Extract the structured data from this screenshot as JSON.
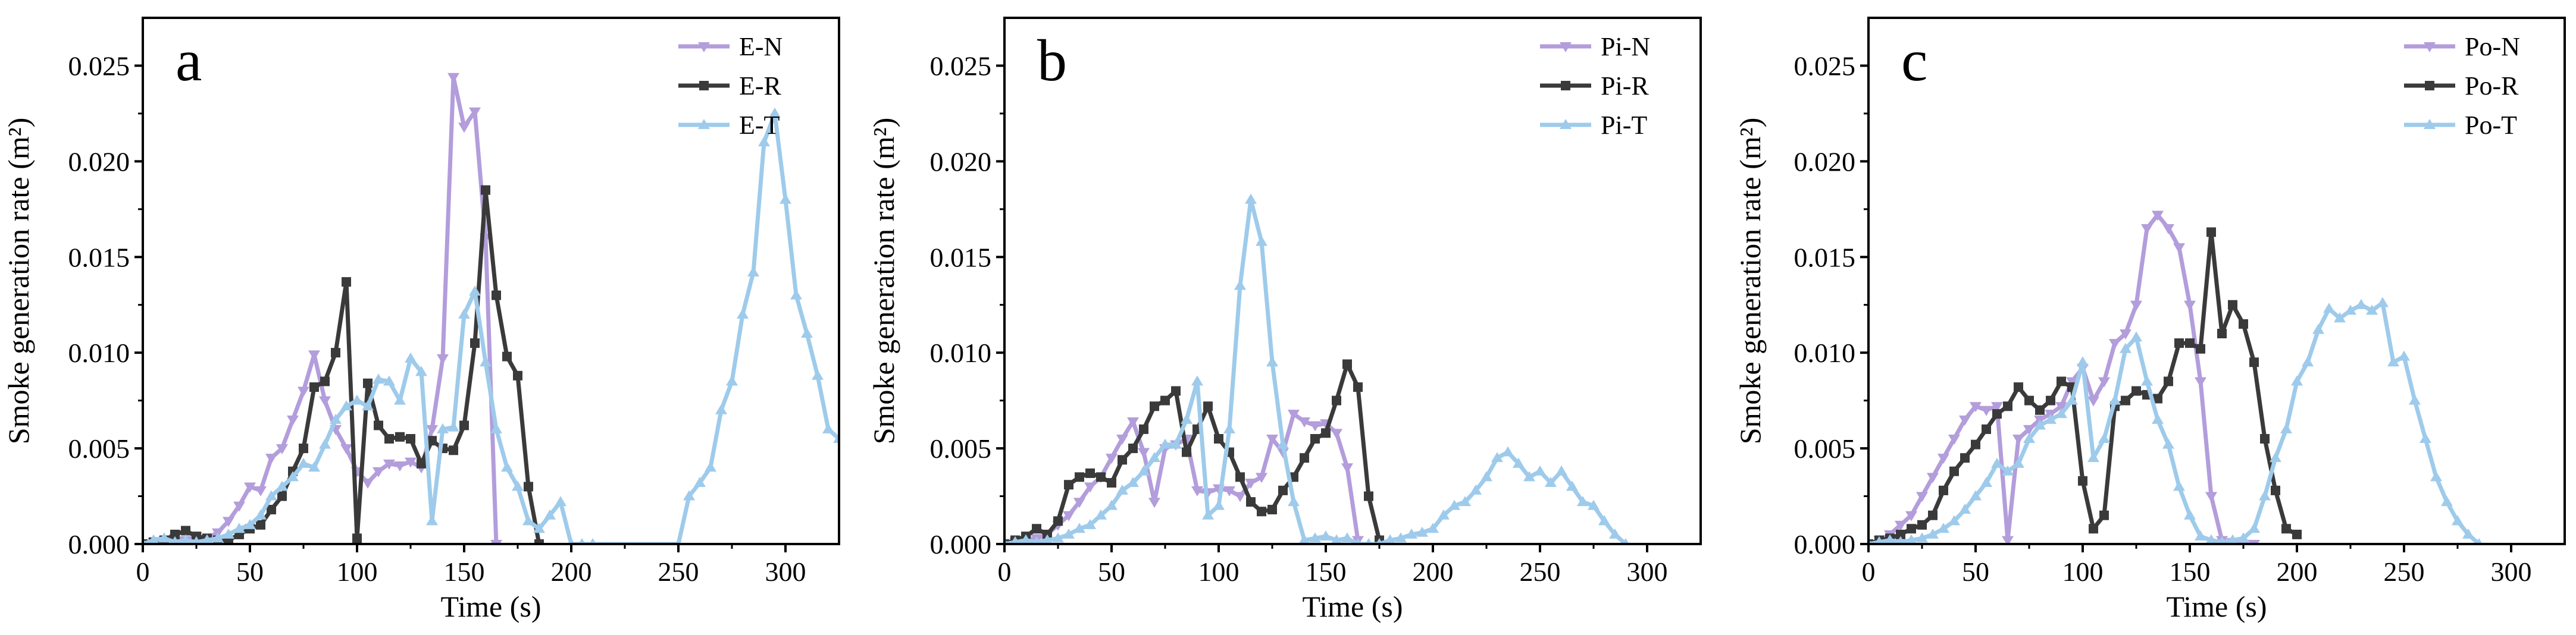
{
  "colors": {
    "N": "#b39ddb",
    "R": "#3a3a3a",
    "T": "#9ecbeb",
    "axis": "#000000"
  },
  "chart_data": [
    {
      "type": "line",
      "panel_label": "a",
      "xlabel": "Time (s)",
      "ylabel": "Smoke generation rate (m²)",
      "xlim": [
        0,
        325
      ],
      "ylim": [
        0,
        0.0275
      ],
      "xticks": [
        "0",
        "50",
        "100",
        "150",
        "200",
        "250",
        "300"
      ],
      "yticks": [
        "0.000",
        "0.005",
        "0.010",
        "0.015",
        "0.020",
        "0.025"
      ],
      "legend_position": "top-right",
      "series": [
        {
          "name": "E-N",
          "color_key": "N",
          "marker": "triangle-down",
          "x": [
            0,
            5,
            10,
            15,
            20,
            25,
            30,
            35,
            40,
            45,
            50,
            55,
            60,
            65,
            70,
            75,
            80,
            85,
            90,
            95,
            100,
            105,
            110,
            115,
            120,
            125,
            130,
            135,
            140,
            145,
            150,
            155,
            160,
            165
          ],
          "y": [
            0,
            0.0001,
            0.0002,
            0.0003,
            0.0002,
            0.0004,
            0.0003,
            0.0006,
            0.0012,
            0.002,
            0.003,
            0.0028,
            0.0045,
            0.005,
            0.0065,
            0.008,
            0.0099,
            0.0075,
            0.006,
            0.005,
            0.0038,
            0.0032,
            0.0038,
            0.0042,
            0.0041,
            0.0043,
            0.004,
            0.006,
            0.0097,
            0.0244,
            0.0218,
            0.0226,
            0.016,
            0
          ]
        },
        {
          "name": "E-R",
          "color_key": "R",
          "marker": "square",
          "x": [
            0,
            5,
            10,
            15,
            20,
            25,
            30,
            35,
            40,
            45,
            50,
            55,
            60,
            65,
            70,
            75,
            80,
            85,
            90,
            95,
            100,
            105,
            110,
            115,
            120,
            125,
            130,
            135,
            140,
            145,
            150,
            155,
            160,
            165,
            170,
            175,
            180,
            185
          ],
          "y": [
            0,
            0.0001,
            0.0002,
            0.0005,
            0.0007,
            0.0004,
            0.0003,
            0.0002,
            0.0002,
            0.0005,
            0.0008,
            0.001,
            0.0018,
            0.0025,
            0.0038,
            0.005,
            0.0082,
            0.0085,
            0.01,
            0.0137,
            0.0003,
            0.0084,
            0.0062,
            0.0055,
            0.0056,
            0.0055,
            0.0042,
            0.0054,
            0.005,
            0.0049,
            0.0062,
            0.0105,
            0.0185,
            0.013,
            0.0098,
            0.0088,
            0.003,
            0
          ]
        },
        {
          "name": "E-T",
          "color_key": "T",
          "marker": "triangle-up",
          "x": [
            0,
            5,
            10,
            15,
            20,
            25,
            30,
            35,
            40,
            45,
            50,
            55,
            60,
            65,
            70,
            75,
            80,
            85,
            90,
            95,
            100,
            105,
            110,
            115,
            120,
            125,
            130,
            135,
            140,
            145,
            150,
            155,
            160,
            165,
            170,
            175,
            180,
            185,
            190,
            195,
            200,
            205,
            210,
            250,
            255,
            260,
            265,
            270,
            275,
            280,
            285,
            290,
            295,
            300,
            305,
            310,
            315,
            320,
            325
          ],
          "y": [
            0,
            0.0002,
            0.0003,
            0.0001,
            0.0002,
            0.0001,
            0.0002,
            0.0003,
            0.0005,
            0.0008,
            0.001,
            0.0015,
            0.0025,
            0.003,
            0.0035,
            0.0042,
            0.004,
            0.0052,
            0.0065,
            0.0072,
            0.0075,
            0.0072,
            0.0086,
            0.0085,
            0.0075,
            0.0097,
            0.009,
            0.0012,
            0.006,
            0.0061,
            0.012,
            0.0132,
            0.0095,
            0.006,
            0.004,
            0.003,
            0.0012,
            0.0008,
            0.0015,
            0.0022,
            0,
            0,
            0,
            0,
            0.0025,
            0.0032,
            0.004,
            0.007,
            0.0085,
            0.012,
            0.0142,
            0.021,
            0.0225,
            0.018,
            0.013,
            0.011,
            0.0088,
            0.006,
            0.0055
          ]
        }
      ]
    },
    {
      "type": "line",
      "panel_label": "b",
      "xlabel": "Time (s)",
      "ylabel": "Smoke generation rate (m²)",
      "xlim": [
        0,
        325
      ],
      "ylim": [
        0,
        0.0275
      ],
      "xticks": [
        "0",
        "50",
        "100",
        "150",
        "200",
        "250",
        "300"
      ],
      "yticks": [
        "0.000",
        "0.005",
        "0.010",
        "0.015",
        "0.020",
        "0.025"
      ],
      "legend_position": "top-right",
      "series": [
        {
          "name": "Pi-N",
          "color_key": "N",
          "marker": "triangle-down",
          "x": [
            0,
            5,
            10,
            15,
            20,
            25,
            30,
            35,
            40,
            45,
            50,
            55,
            60,
            65,
            70,
            75,
            80,
            85,
            90,
            95,
            100,
            105,
            110,
            115,
            120,
            125,
            130,
            135,
            140,
            145,
            150,
            155,
            160,
            165
          ],
          "y": [
            0,
            0.0001,
            0.0002,
            0.0003,
            0.0005,
            0.001,
            0.0015,
            0.0022,
            0.003,
            0.0035,
            0.0045,
            0.0055,
            0.0064,
            0.0048,
            0.0022,
            0.005,
            0.0052,
            0.0055,
            0.0028,
            0.0027,
            0.0029,
            0.0028,
            0.0025,
            0.0032,
            0.0035,
            0.0055,
            0.0048,
            0.0068,
            0.0064,
            0.0062,
            0.0063,
            0.0058,
            0.004,
            0.0002
          ]
        },
        {
          "name": "Pi-R",
          "color_key": "R",
          "marker": "square",
          "x": [
            0,
            5,
            10,
            15,
            20,
            25,
            30,
            35,
            40,
            45,
            50,
            55,
            60,
            65,
            70,
            75,
            80,
            85,
            90,
            95,
            100,
            105,
            110,
            115,
            120,
            125,
            130,
            135,
            140,
            145,
            150,
            155,
            160,
            165,
            170,
            175
          ],
          "y": [
            0,
            0.0002,
            0.0004,
            0.0008,
            0.0005,
            0.0012,
            0.0031,
            0.0035,
            0.0037,
            0.0035,
            0.0032,
            0.0044,
            0.005,
            0.006,
            0.0072,
            0.0075,
            0.008,
            0.0048,
            0.006,
            0.0072,
            0.0055,
            0.0048,
            0.0035,
            0.0022,
            0.0017,
            0.0018,
            0.0028,
            0.0035,
            0.0045,
            0.0055,
            0.0058,
            0.0075,
            0.0094,
            0.0082,
            0.0025,
            0.0002
          ]
        },
        {
          "name": "Pi-T",
          "color_key": "T",
          "marker": "triangle-up",
          "x": [
            0,
            5,
            10,
            15,
            20,
            25,
            30,
            35,
            40,
            45,
            50,
            55,
            60,
            65,
            70,
            75,
            80,
            85,
            90,
            95,
            100,
            105,
            110,
            115,
            120,
            125,
            130,
            135,
            140,
            145,
            150,
            155,
            160,
            165,
            170,
            175,
            180,
            185,
            190,
            195,
            200,
            205,
            210,
            215,
            220,
            225,
            230,
            235,
            240,
            245,
            250,
            255,
            260,
            265,
            270,
            275,
            280,
            285,
            290
          ],
          "y": [
            0,
            0.0001,
            0.0002,
            0.0001,
            0.0002,
            0.0003,
            0.0005,
            0.0008,
            0.001,
            0.0015,
            0.002,
            0.0028,
            0.0032,
            0.0038,
            0.0045,
            0.0052,
            0.0052,
            0.0065,
            0.0085,
            0.0015,
            0.002,
            0.006,
            0.0135,
            0.018,
            0.0158,
            0.0095,
            0.0052,
            0.0022,
            0.0002,
            0.0003,
            0.0004,
            0.0002,
            0.0003,
            0,
            0,
            0,
            0.0002,
            0.0003,
            0.0005,
            0.0006,
            0.0008,
            0.0015,
            0.002,
            0.0022,
            0.0028,
            0.0035,
            0.0045,
            0.0048,
            0.0042,
            0.0035,
            0.0038,
            0.0032,
            0.0038,
            0.003,
            0.0022,
            0.002,
            0.0012,
            0.0005,
            0
          ]
        }
      ]
    },
    {
      "type": "line",
      "panel_label": "c",
      "xlabel": "Time (s)",
      "ylabel": "Smoke generation rate (m²)",
      "xlim": [
        0,
        325
      ],
      "ylim": [
        0,
        0.0275
      ],
      "xticks": [
        "0",
        "50",
        "100",
        "150",
        "200",
        "250",
        "300"
      ],
      "yticks": [
        "0.000",
        "0.005",
        "0.010",
        "0.015",
        "0.020",
        "0.025"
      ],
      "legend_position": "top-right",
      "series": [
        {
          "name": "Po-N",
          "color_key": "N",
          "marker": "triangle-down",
          "x": [
            0,
            5,
            10,
            15,
            20,
            25,
            30,
            35,
            40,
            45,
            50,
            55,
            60,
            65,
            70,
            75,
            80,
            85,
            90,
            95,
            100,
            105,
            110,
            115,
            120,
            125,
            130,
            135,
            140,
            145,
            150,
            155,
            160,
            165,
            170,
            175,
            180
          ],
          "y": [
            0,
            0.0002,
            0.0005,
            0.001,
            0.0015,
            0.0025,
            0.0035,
            0.0045,
            0.0055,
            0.0065,
            0.0072,
            0.007,
            0.0072,
            0.0002,
            0.0055,
            0.006,
            0.0065,
            0.0068,
            0.0072,
            0.0085,
            0.0092,
            0.0075,
            0.0085,
            0.0105,
            0.011,
            0.0125,
            0.0165,
            0.0172,
            0.0165,
            0.0155,
            0.0125,
            0.0085,
            0.0025,
            0.0002,
            0.0001,
            0,
            0
          ]
        },
        {
          "name": "Po-R",
          "color_key": "R",
          "marker": "square",
          "x": [
            0,
            5,
            10,
            15,
            20,
            25,
            30,
            35,
            40,
            45,
            50,
            55,
            60,
            65,
            70,
            75,
            80,
            85,
            90,
            95,
            100,
            105,
            110,
            115,
            120,
            125,
            130,
            135,
            140,
            145,
            150,
            155,
            160,
            165,
            170,
            175,
            180,
            185,
            190,
            195,
            200
          ],
          "y": [
            0,
            0.0002,
            0.0003,
            0.0005,
            0.0008,
            0.001,
            0.0015,
            0.0028,
            0.0038,
            0.0045,
            0.0052,
            0.006,
            0.0068,
            0.0072,
            0.0082,
            0.0075,
            0.007,
            0.0075,
            0.0085,
            0.0082,
            0.0033,
            0.0008,
            0.0015,
            0.0072,
            0.0075,
            0.008,
            0.0078,
            0.0076,
            0.0085,
            0.0105,
            0.0105,
            0.0102,
            0.0163,
            0.011,
            0.0125,
            0.0115,
            0.0095,
            0.0055,
            0.0028,
            0.0008,
            0.0005
          ]
        },
        {
          "name": "Po-T",
          "color_key": "T",
          "marker": "triangle-up",
          "x": [
            0,
            5,
            10,
            15,
            20,
            25,
            30,
            35,
            40,
            45,
            50,
            55,
            60,
            65,
            70,
            75,
            80,
            85,
            90,
            95,
            100,
            105,
            110,
            115,
            120,
            125,
            130,
            135,
            140,
            145,
            150,
            155,
            160,
            165,
            170,
            175,
            180,
            185,
            190,
            195,
            200,
            205,
            210,
            215,
            220,
            225,
            230,
            235,
            240,
            245,
            250,
            255,
            260,
            265,
            270,
            275,
            280,
            285
          ],
          "y": [
            0,
            0.0001,
            0.0002,
            0.0001,
            0.0002,
            0.0003,
            0.0005,
            0.0008,
            0.0012,
            0.0018,
            0.0025,
            0.0032,
            0.0042,
            0.0038,
            0.0042,
            0.0055,
            0.0062,
            0.0065,
            0.0068,
            0.0075,
            0.0095,
            0.0045,
            0.0055,
            0.0075,
            0.0102,
            0.0108,
            0.0085,
            0.0065,
            0.0052,
            0.003,
            0.0015,
            0.0004,
            0.0002,
            0.0001,
            0.0002,
            0.0003,
            0.0008,
            0.0025,
            0.0045,
            0.006,
            0.0085,
            0.0095,
            0.0112,
            0.0123,
            0.0118,
            0.0122,
            0.0125,
            0.0122,
            0.0126,
            0.0095,
            0.0098,
            0.0075,
            0.0055,
            0.0035,
            0.0022,
            0.0012,
            0.0005,
            0
          ]
        }
      ]
    }
  ]
}
